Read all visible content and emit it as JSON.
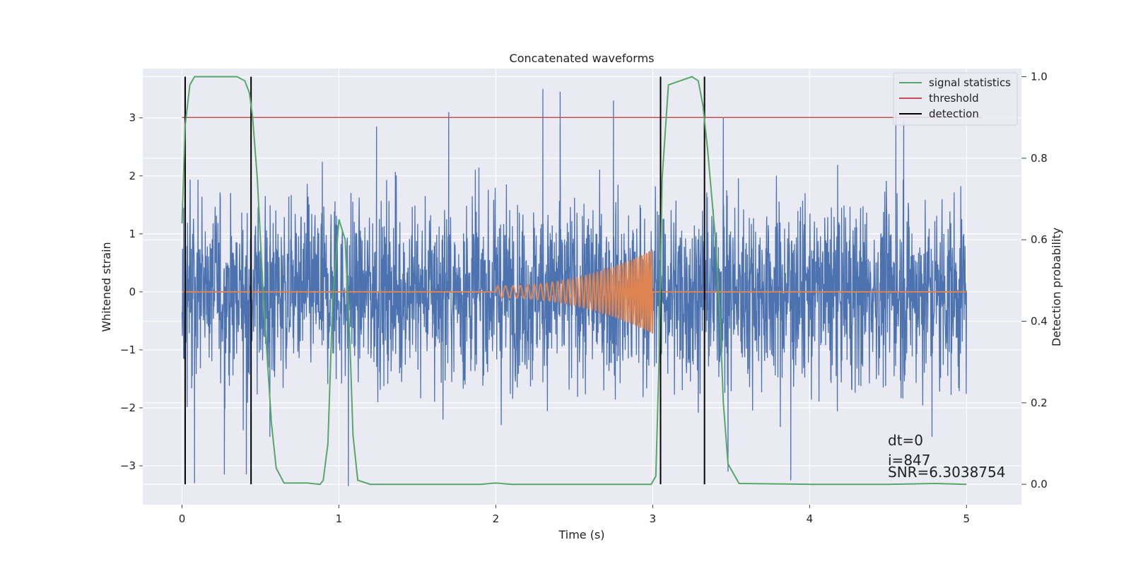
{
  "chart_data": {
    "type": "line",
    "title": "Concatenated waveforms",
    "xlabel": "Time (s)",
    "ylabel": "Whitened strain",
    "ylabel_right": "Detection probability",
    "xlim": [
      -0.25,
      5.35
    ],
    "ylim": [
      -3.67,
      3.85
    ],
    "ylim_right": [
      -0.05,
      1.02
    ],
    "xticks": [
      0,
      1,
      2,
      3,
      4,
      5
    ],
    "xtick_labels": [
      "0",
      "1",
      "2",
      "3",
      "4",
      "5"
    ],
    "yticks": [
      -3,
      -2,
      -1,
      0,
      1,
      2,
      3
    ],
    "ytick_labels": [
      "−3",
      "−2",
      "−1",
      "0",
      "1",
      "2",
      "3"
    ],
    "yticks_right": [
      0.0,
      0.2,
      0.4,
      0.6,
      0.8,
      1.0
    ],
    "ytick_labels_right": [
      "0.0",
      "0.2",
      "0.4",
      "0.6",
      "0.8",
      "1.0"
    ],
    "grid": true,
    "legend_position": "top-right",
    "legend": [
      "signal statistics",
      "threshold",
      "detection"
    ],
    "colors": {
      "strain": "#4c72b0",
      "injected": "#dd8452",
      "signal_statistics": "#55a868",
      "threshold": "#c44e52",
      "detection": "#000000",
      "background": "#eaeaf2",
      "grid": "#ffffff"
    },
    "strain": {
      "t_start": 0,
      "t_end": 5,
      "envelope_max": 3.5,
      "envelope_min": -3.4,
      "peaks": [
        {
          "t": 0.01,
          "v": 1.45
        },
        {
          "t": 0.01,
          "v": -1.15
        },
        {
          "t": 0.08,
          "v": -3.3
        },
        {
          "t": 0.27,
          "v": -3.15
        },
        {
          "t": 0.41,
          "v": -3.15
        },
        {
          "t": 0.56,
          "v": -2.5
        },
        {
          "t": 0.99,
          "v": 1.15
        },
        {
          "t": 1.06,
          "v": -3.35
        },
        {
          "t": 1.24,
          "v": 2.85
        },
        {
          "t": 1.7,
          "v": 3.1
        },
        {
          "t": 2.3,
          "v": 3.5
        },
        {
          "t": 2.41,
          "v": 3.45
        },
        {
          "t": 2.75,
          "v": 3.3
        },
        {
          "t": 3.05,
          "v": -3.25
        },
        {
          "t": 3.45,
          "v": 3.0
        },
        {
          "t": 3.48,
          "v": -3.1
        },
        {
          "t": 3.88,
          "v": -3.25
        },
        {
          "t": 4.55,
          "v": 3.1
        },
        {
          "t": 4.6,
          "v": 2.95
        },
        {
          "t": 4.78,
          "v": -2.5
        }
      ]
    },
    "injected_signal": {
      "t_start": 2.0,
      "t_end": 3.0,
      "amp_start": 0.1,
      "amp_end": 0.72,
      "freq_start": 20,
      "freq_end": 70
    },
    "signal_statistics": {
      "x": [
        0.0,
        0.02,
        0.05,
        0.08,
        0.12,
        0.35,
        0.4,
        0.43,
        0.45,
        0.48,
        0.52,
        0.57,
        0.6,
        0.65,
        0.8,
        0.88,
        0.9,
        0.93,
        0.96,
        1.0,
        1.04,
        1.07,
        1.09,
        1.12,
        1.2,
        1.5,
        1.9,
        2.0,
        2.1,
        2.5,
        2.99,
        3.02,
        3.04,
        3.06,
        3.1,
        3.25,
        3.29,
        3.32,
        3.35,
        3.4,
        3.43,
        3.45,
        3.48,
        3.55,
        4.0,
        4.5,
        4.8,
        5.0
      ],
      "y": [
        0.64,
        0.88,
        0.98,
        1.0,
        1.0,
        1.0,
        0.99,
        0.96,
        0.9,
        0.75,
        0.45,
        0.15,
        0.04,
        0.003,
        0.003,
        0.0,
        0.01,
        0.1,
        0.45,
        0.65,
        0.6,
        0.35,
        0.12,
        0.01,
        0.0,
        0.0,
        0.0,
        0.003,
        0.0,
        0.0,
        0.0,
        0.02,
        0.3,
        0.75,
        0.98,
        1.0,
        0.99,
        0.93,
        0.82,
        0.6,
        0.4,
        0.2,
        0.05,
        0.002,
        0.0,
        0.0,
        0.002,
        0.0
      ]
    },
    "threshold": {
      "x": [
        0,
        5.1
      ],
      "value": 0.9
    },
    "detections": [
      0.02,
      0.44,
      3.05,
      3.33
    ],
    "annotations": [
      "dt=0",
      "i=847",
      "SNR=6.3038754"
    ]
  }
}
